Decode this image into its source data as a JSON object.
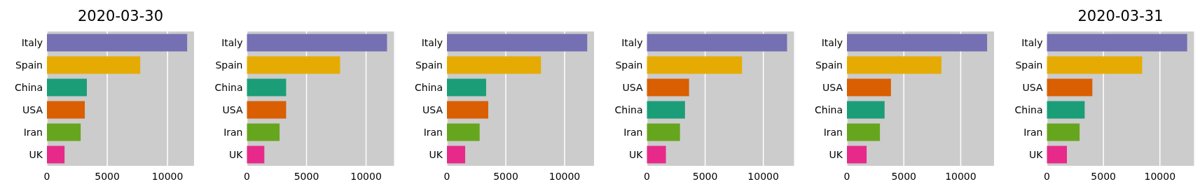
{
  "chart_data": [
    {
      "type": "bar",
      "orientation": "horizontal",
      "title": "2020-03-30",
      "categories": [
        "Italy",
        "Spain",
        "China",
        "USA",
        "Iran",
        "UK"
      ],
      "values": [
        11630,
        7740,
        3310,
        3140,
        2800,
        1460
      ],
      "colors": [
        "#7570b3",
        "#e6ab02",
        "#1b9e77",
        "#d95f02",
        "#66a61e",
        "#e7298a"
      ],
      "xlim": [
        0,
        12200
      ],
      "xticks": [
        0,
        5000,
        10000
      ],
      "grid": "x"
    },
    {
      "type": "bar",
      "orientation": "horizontal",
      "categories": [
        "Italy",
        "Spain",
        "China",
        "USA",
        "Iran",
        "UK"
      ],
      "values": [
        11760,
        7820,
        3290,
        3290,
        2740,
        1460
      ],
      "colors": [
        "#7570b3",
        "#e6ab02",
        "#1b9e77",
        "#d95f02",
        "#66a61e",
        "#e7298a"
      ],
      "xlim": [
        0,
        12350
      ],
      "xticks": [
        0,
        5000,
        10000
      ],
      "grid": "x"
    },
    {
      "type": "bar",
      "orientation": "horizontal",
      "categories": [
        "Italy",
        "Spain",
        "China",
        "USA",
        "Iran",
        "UK"
      ],
      "values": [
        11920,
        7990,
        3330,
        3510,
        2780,
        1550
      ],
      "colors": [
        "#7570b3",
        "#e6ab02",
        "#1b9e77",
        "#d95f02",
        "#66a61e",
        "#e7298a"
      ],
      "xlim": [
        0,
        12500
      ],
      "xticks": [
        0,
        5000,
        10000
      ],
      "grid": "x"
    },
    {
      "type": "bar",
      "orientation": "horizontal",
      "categories": [
        "Italy",
        "Spain",
        "USA",
        "China",
        "Iran",
        "UK"
      ],
      "values": [
        12040,
        8170,
        3620,
        3270,
        2840,
        1630
      ],
      "colors": [
        "#7570b3",
        "#e6ab02",
        "#d95f02",
        "#1b9e77",
        "#66a61e",
        "#e7298a"
      ],
      "xlim": [
        0,
        12640
      ],
      "xticks": [
        0,
        5000,
        10000
      ],
      "grid": "x"
    },
    {
      "type": "bar",
      "orientation": "horizontal",
      "categories": [
        "Italy",
        "Spain",
        "USA",
        "China",
        "Iran",
        "UK"
      ],
      "values": [
        12320,
        8310,
        3870,
        3310,
        2900,
        1730
      ],
      "colors": [
        "#7570b3",
        "#e6ab02",
        "#d95f02",
        "#1b9e77",
        "#66a61e",
        "#e7298a"
      ],
      "xlim": [
        0,
        12930
      ],
      "xticks": [
        0,
        5000,
        10000
      ],
      "grid": "x"
    },
    {
      "type": "bar",
      "orientation": "horizontal",
      "title": "2020-03-31",
      "categories": [
        "Italy",
        "Spain",
        "USA",
        "China",
        "Iran",
        "UK"
      ],
      "values": [
        12410,
        8430,
        4020,
        3340,
        2890,
        1770
      ],
      "colors": [
        "#7570b3",
        "#e6ab02",
        "#d95f02",
        "#1b9e77",
        "#66a61e",
        "#e7298a"
      ],
      "xlim": [
        0,
        13020
      ],
      "xticks": [
        0,
        5000,
        10000
      ],
      "grid": "x"
    }
  ]
}
